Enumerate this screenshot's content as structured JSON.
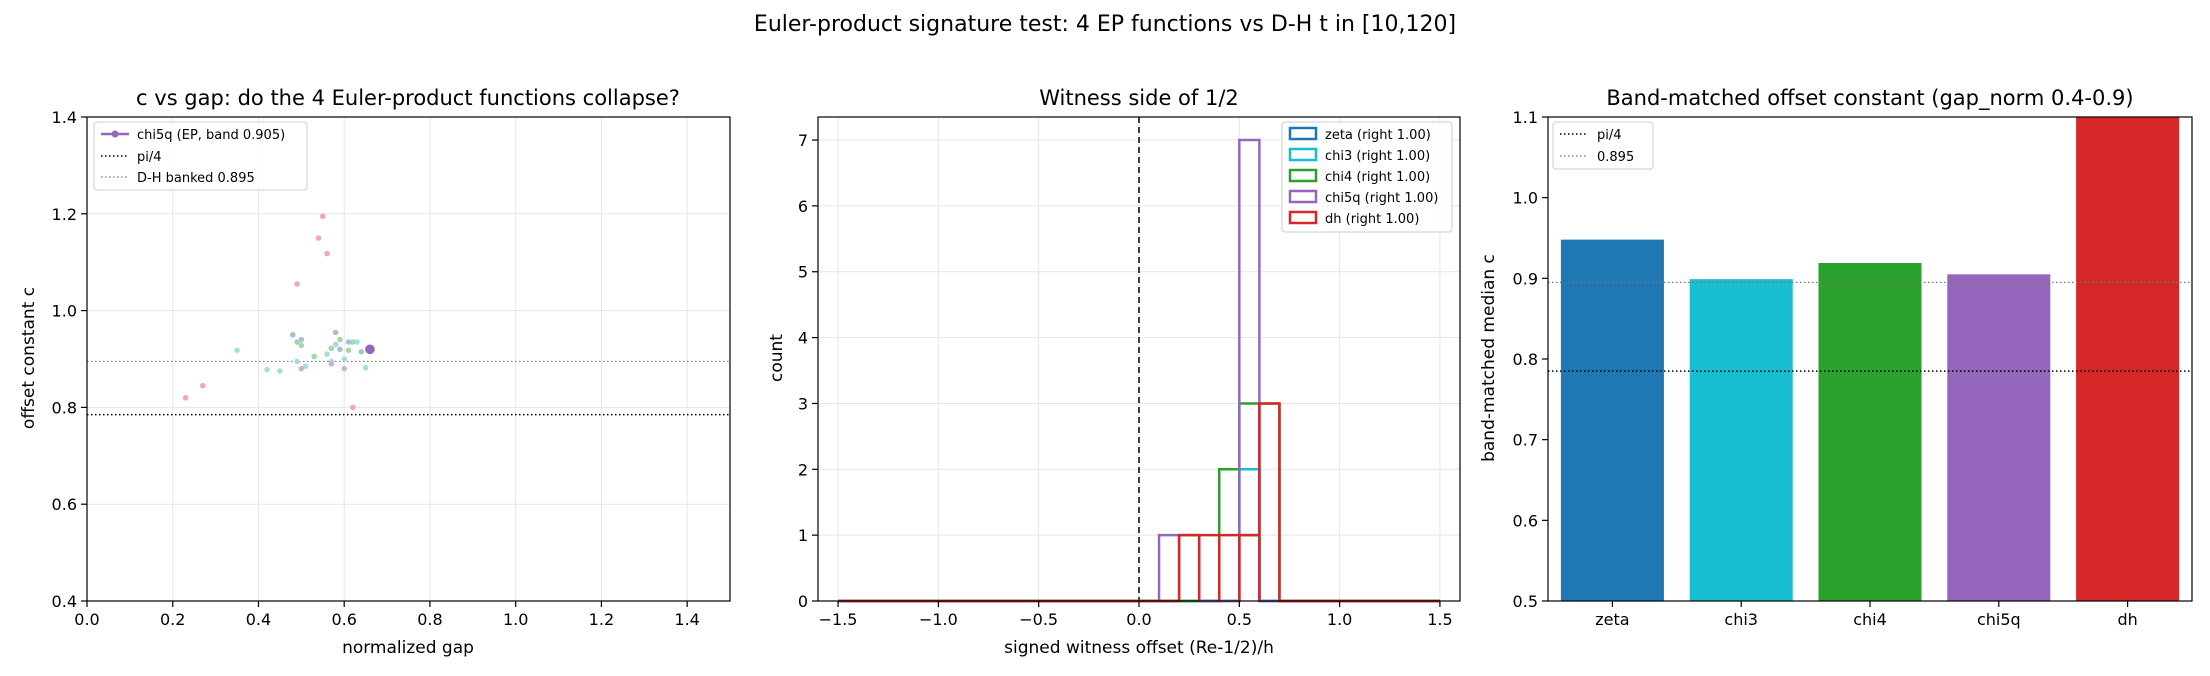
{
  "title": "Euler-product signature test: 4 EP functions vs D-H   t in [10,120]",
  "colors": {
    "zeta": "#1f77b4",
    "chi3": "#17becf",
    "chi4": "#2ca02c",
    "chi5q": "#9467bd",
    "dh": "#d62728"
  },
  "chart_data": [
    {
      "type": "scatter",
      "title": "c vs gap: do the 4 Euler-product functions collapse?",
      "xlabel": "normalized gap",
      "ylabel": "offset constant c",
      "xlim": [
        0,
        1.5
      ],
      "ylim": [
        0.4,
        1.4
      ],
      "xticks": [
        0.0,
        0.2,
        0.4,
        0.6,
        0.8,
        1.0,
        1.2,
        1.4
      ],
      "yticks": [
        0.4,
        0.6,
        0.8,
        1.0,
        1.2,
        1.4
      ],
      "grid": true,
      "legend_position": "top-left",
      "legend": [
        "chi5q (EP, band 0.905)",
        "pi/4",
        "D-H banked 0.895"
      ],
      "hlines": [
        {
          "name": "pi/4",
          "y": 0.785,
          "style": "dotted",
          "color": "#000000"
        },
        {
          "name": "D-H banked 0.895",
          "y": 0.895,
          "style": "dotted",
          "color": "#777777"
        }
      ],
      "highlight_point": {
        "x": 0.66,
        "y": 0.92,
        "color": "#9467bd"
      },
      "series": [
        {
          "key": "dh",
          "color": "#f4a8ae",
          "x": [
            0.55,
            0.54,
            0.56,
            0.49,
            0.27,
            0.23,
            0.62,
            0.58
          ],
          "y": [
            1.195,
            1.15,
            1.118,
            1.055,
            0.845,
            0.82,
            0.8,
            0.93
          ]
        },
        {
          "key": "chi3",
          "color": "#a6dde3",
          "x": [
            0.35,
            0.42,
            0.45,
            0.49,
            0.51,
            0.56,
            0.58,
            0.6,
            0.63,
            0.65,
            0.57
          ],
          "y": [
            0.918,
            0.878,
            0.875,
            0.895,
            0.885,
            0.91,
            0.93,
            0.9,
            0.935,
            0.882,
            0.895
          ]
        },
        {
          "key": "chi4",
          "color": "#a6d8a6",
          "x": [
            0.49,
            0.5,
            0.53,
            0.59,
            0.61,
            0.62,
            0.57
          ],
          "y": [
            0.935,
            0.928,
            0.905,
            0.94,
            0.918,
            0.935,
            0.922
          ]
        },
        {
          "key": "zeta",
          "color": "#a8c0d8",
          "x": [
            0.48,
            0.58,
            0.59,
            0.61,
            0.64,
            0.5
          ],
          "y": [
            0.95,
            0.955,
            0.92,
            0.935,
            0.915,
            0.94
          ]
        },
        {
          "key": "chi5q",
          "color": "#c8b2dc",
          "x": [
            0.5,
            0.57,
            0.6
          ],
          "y": [
            0.88,
            0.89,
            0.88
          ]
        }
      ]
    },
    {
      "type": "histogram",
      "title": "Witness side of 1/2",
      "xlabel": "signed witness offset (Re-1/2)/h",
      "ylabel": "count",
      "xlim": [
        -1.6,
        1.6
      ],
      "ylim": [
        0,
        7.35
      ],
      "xticks": [
        -1.5,
        -1.0,
        -0.5,
        0.0,
        0.5,
        1.0,
        1.5
      ],
      "xtick_labels": [
        "−1.5",
        "−1.0",
        "−0.5",
        "0.0",
        "0.5",
        "1.0",
        "1.5"
      ],
      "yticks": [
        0,
        1,
        2,
        3,
        4,
        5,
        6,
        7
      ],
      "grid": true,
      "legend_position": "top-right",
      "vline": {
        "x": 0.0,
        "style": "dashed"
      },
      "range": [
        -1.5,
        1.5
      ],
      "bin_width": 0.1,
      "series": [
        {
          "key": "zeta",
          "name": "zeta (right 1.00)",
          "bins": [
            [
              0.5,
              0.6,
              1
            ]
          ]
        },
        {
          "key": "chi3",
          "name": "chi3 (right 1.00)",
          "bins": [
            [
              0.4,
              0.5,
              2
            ],
            [
              0.5,
              0.6,
              2
            ]
          ]
        },
        {
          "key": "chi4",
          "name": "chi4 (right 1.00)",
          "bins": [
            [
              0.4,
              0.5,
              2
            ],
            [
              0.5,
              0.6,
              3
            ],
            [
              0.6,
              0.7,
              3
            ]
          ]
        },
        {
          "key": "chi5q",
          "name": "chi5q (right 1.00)",
          "bins": [
            [
              0.1,
              0.2,
              1
            ],
            [
              0.2,
              0.3,
              1
            ],
            [
              0.5,
              0.6,
              7
            ]
          ]
        },
        {
          "key": "dh",
          "name": "dh (right 1.00)",
          "bins": [
            [
              0.2,
              0.3,
              1
            ],
            [
              0.3,
              0.4,
              1
            ],
            [
              0.4,
              0.5,
              1
            ],
            [
              0.5,
              0.6,
              1
            ],
            [
              0.6,
              0.7,
              3
            ]
          ]
        }
      ]
    },
    {
      "type": "bar",
      "title": "Band-matched offset constant (gap_norm 0.4-0.9)",
      "xlabel": "",
      "ylabel": "band-matched median c",
      "ylim": [
        0.5,
        1.1
      ],
      "yticks": [
        0.5,
        0.6,
        0.7,
        0.8,
        0.9,
        1.0,
        1.1
      ],
      "grid": false,
      "legend_position": "top-left",
      "legend": [
        "pi/4",
        "0.895"
      ],
      "hlines": [
        {
          "name": "pi/4",
          "y": 0.785,
          "style": "dotted",
          "color": "#000000"
        },
        {
          "name": "0.895",
          "y": 0.895,
          "style": "dotted",
          "color": "#777777"
        }
      ],
      "categories": [
        "zeta",
        "chi3",
        "chi4",
        "chi5q",
        "dh"
      ],
      "values": [
        0.948,
        0.899,
        0.919,
        0.905,
        1.11
      ]
    }
  ]
}
